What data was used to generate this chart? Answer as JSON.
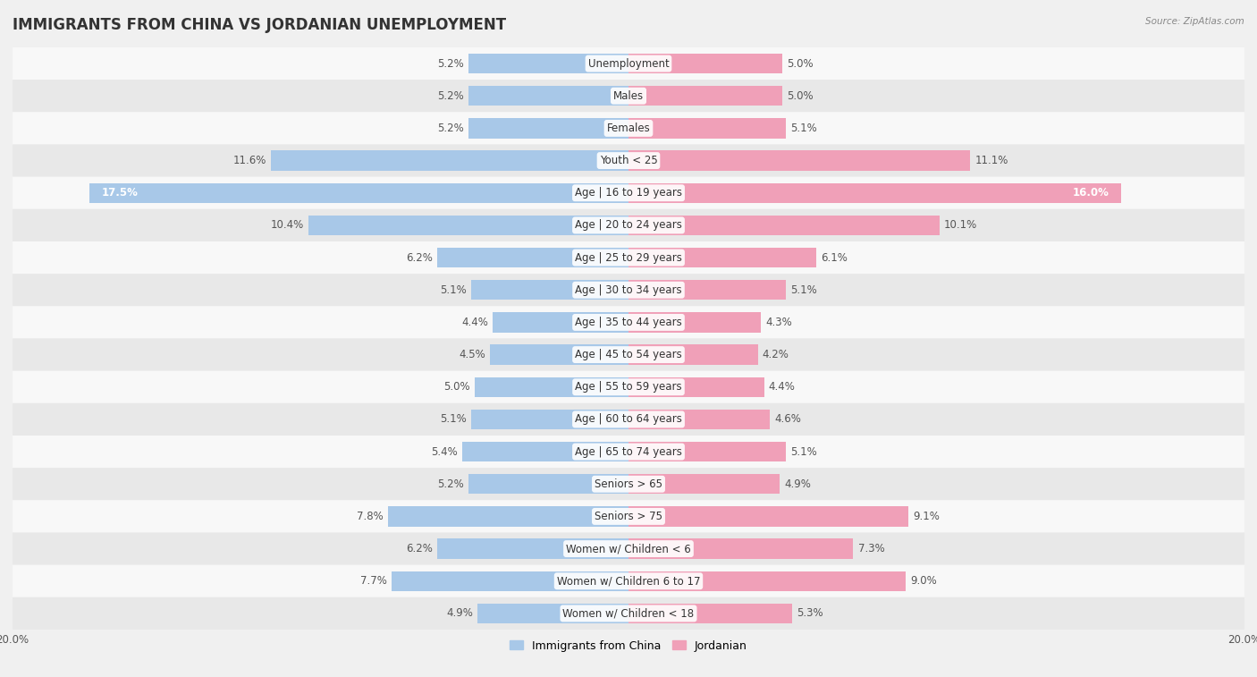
{
  "title": "IMMIGRANTS FROM CHINA VS JORDANIAN UNEMPLOYMENT",
  "source": "Source: ZipAtlas.com",
  "categories": [
    "Unemployment",
    "Males",
    "Females",
    "Youth < 25",
    "Age | 16 to 19 years",
    "Age | 20 to 24 years",
    "Age | 25 to 29 years",
    "Age | 30 to 34 years",
    "Age | 35 to 44 years",
    "Age | 45 to 54 years",
    "Age | 55 to 59 years",
    "Age | 60 to 64 years",
    "Age | 65 to 74 years",
    "Seniors > 65",
    "Seniors > 75",
    "Women w/ Children < 6",
    "Women w/ Children 6 to 17",
    "Women w/ Children < 18"
  ],
  "china_values": [
    5.2,
    5.2,
    5.2,
    11.6,
    17.5,
    10.4,
    6.2,
    5.1,
    4.4,
    4.5,
    5.0,
    5.1,
    5.4,
    5.2,
    7.8,
    6.2,
    7.7,
    4.9
  ],
  "jordan_values": [
    5.0,
    5.0,
    5.1,
    11.1,
    16.0,
    10.1,
    6.1,
    5.1,
    4.3,
    4.2,
    4.4,
    4.6,
    5.1,
    4.9,
    9.1,
    7.3,
    9.0,
    5.3
  ],
  "china_color": "#a8c8e8",
  "jordan_color": "#f0a0b8",
  "china_label": "Immigrants from China",
  "jordan_label": "Jordanian",
  "axis_limit": 20.0,
  "bg_color": "#f0f0f0",
  "row_color_light": "#f8f8f8",
  "row_color_dark": "#e8e8e8",
  "bar_height": 0.62,
  "title_fontsize": 12,
  "label_fontsize": 8.5,
  "value_fontsize": 8.5
}
